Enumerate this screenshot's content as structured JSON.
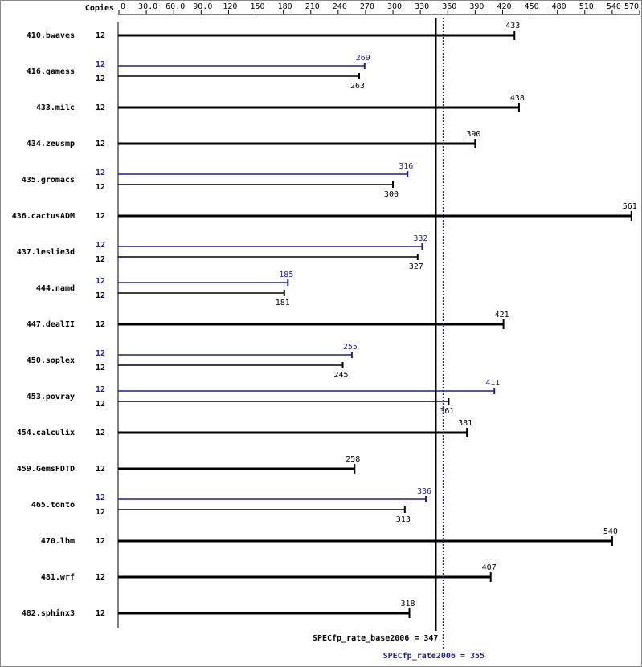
{
  "chart_data": {
    "type": "spec-bar",
    "copies_label": "Copies",
    "xlim": [
      0,
      570
    ],
    "xticks": [
      0,
      {
        "value": 30,
        "label": "30.0"
      },
      {
        "value": 60,
        "label": "60.0"
      },
      {
        "value": 90,
        "label": "90.0"
      },
      120,
      150,
      180,
      210,
      240,
      270,
      300,
      330,
      360,
      390,
      420,
      450,
      480,
      510,
      540,
      570
    ],
    "categories": [
      "410.bwaves",
      "416.gamess",
      "433.milc",
      "434.zeusmp",
      "435.gromacs",
      "436.cactusADM",
      "437.leslie3d",
      "444.namd",
      "447.dealII",
      "450.soplex",
      "453.povray",
      "454.calculix",
      "459.GemsFDTD",
      "465.tonto",
      "470.lbm",
      "481.wrf",
      "482.sphinx3"
    ],
    "series": [
      {
        "name": "base",
        "color": "#000000",
        "copies": [
          12,
          12,
          12,
          12,
          12,
          12,
          12,
          12,
          12,
          12,
          12,
          12,
          12,
          12,
          12,
          12,
          12
        ],
        "values": [
          433,
          263,
          438,
          390,
          300,
          561,
          327,
          181,
          421,
          245,
          361,
          381,
          258,
          313,
          540,
          407,
          318
        ]
      },
      {
        "name": "peak",
        "color": "#1f1f9a",
        "copies": [
          null,
          12,
          null,
          null,
          12,
          null,
          12,
          12,
          null,
          12,
          12,
          null,
          null,
          12,
          null,
          null,
          null
        ],
        "values": [
          null,
          269,
          null,
          null,
          316,
          null,
          332,
          185,
          null,
          255,
          411,
          null,
          null,
          336,
          null,
          null,
          null
        ]
      }
    ],
    "reference_lines": [
      {
        "label": "SPECfp_rate_base2006 = 347",
        "value": 347,
        "color": "#000000",
        "style": "solid"
      },
      {
        "label": "SPECfp_rate2006 = 355",
        "value": 355,
        "color": "#1f1f9a",
        "style": "dotted"
      }
    ]
  }
}
